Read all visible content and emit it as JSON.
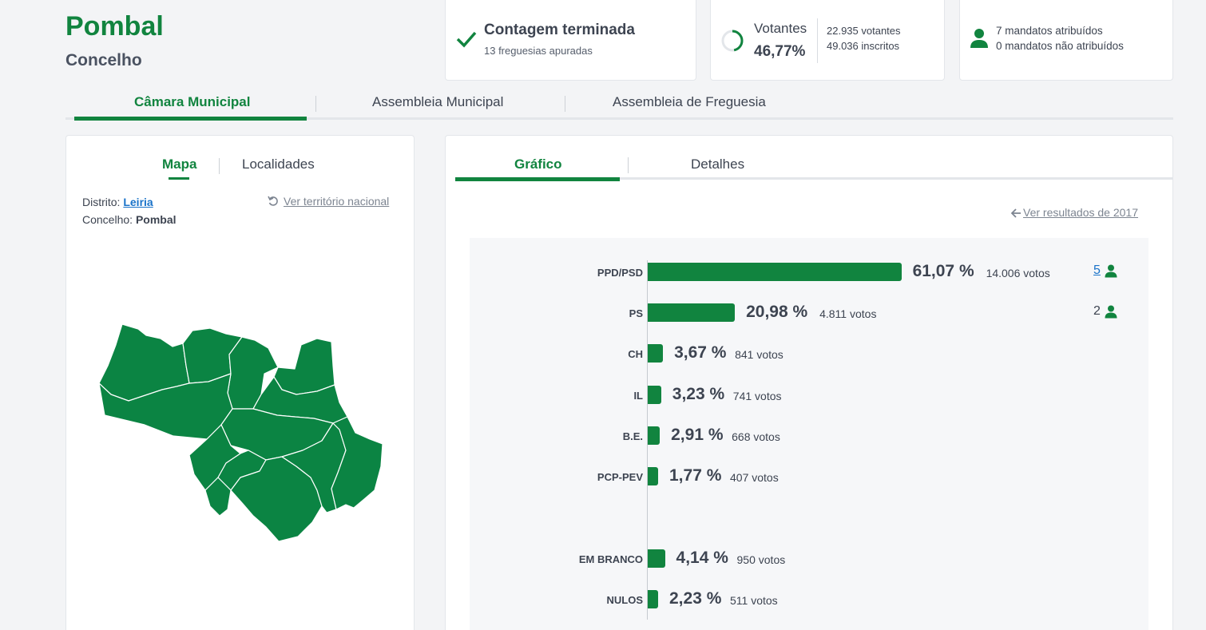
{
  "header": {
    "title": "Pombal",
    "subtitle": "Concelho"
  },
  "status": {
    "title": "Contagem terminada",
    "sub": "13 freguesias apuradas"
  },
  "voters": {
    "label": "Votantes",
    "pct": "46,77%",
    "pct_value": 0.4677,
    "voters": "22.935 votantes",
    "registered": "49.036 inscritos"
  },
  "seats": {
    "assigned": "7 mandatos atribuídos",
    "unassigned": "0 mandatos não atribuídos"
  },
  "tabs": [
    "Câmara Municipal",
    "Assembleia Municipal",
    "Assembleia de Freguesia"
  ],
  "left": {
    "tabs": [
      "Mapa",
      "Localidades"
    ],
    "district_label": "Distrito:",
    "district": "Leiria",
    "council_label": "Concelho:",
    "council": "Pombal",
    "national_link": "Ver território nacional"
  },
  "right": {
    "tabs": [
      "Gráfico",
      "Detalhes"
    ],
    "prev_results": "Ver resultados de 2017"
  },
  "colors": {
    "accent": "#11843f",
    "link": "#1a73c9"
  },
  "chart_data": {
    "type": "bar",
    "orientation": "horizontal",
    "rows": [
      {
        "party": "PPD/PSD",
        "pct": 61.07,
        "pct_label": "61,07 %",
        "votes": "14.006 votos",
        "mandates": "5"
      },
      {
        "party": "PS",
        "pct": 20.98,
        "pct_label": "20,98 %",
        "votes": "4.811 votos",
        "mandates": "2"
      },
      {
        "party": "CH",
        "pct": 3.67,
        "pct_label": "3,67 %",
        "votes": "841 votos"
      },
      {
        "party": "IL",
        "pct": 3.23,
        "pct_label": "3,23 %",
        "votes": "741 votos"
      },
      {
        "party": "B.E.",
        "pct": 2.91,
        "pct_label": "2,91 %",
        "votes": "668 votos"
      },
      {
        "party": "PCP-PEV",
        "pct": 1.77,
        "pct_label": "1,77 %",
        "votes": "407 votos"
      },
      {
        "party": "EM BRANCO",
        "pct": 4.14,
        "pct_label": "4,14 %",
        "votes": "950 votos"
      },
      {
        "party": "NULOS",
        "pct": 2.23,
        "pct_label": "2,23 %",
        "votes": "511 votos"
      }
    ]
  }
}
